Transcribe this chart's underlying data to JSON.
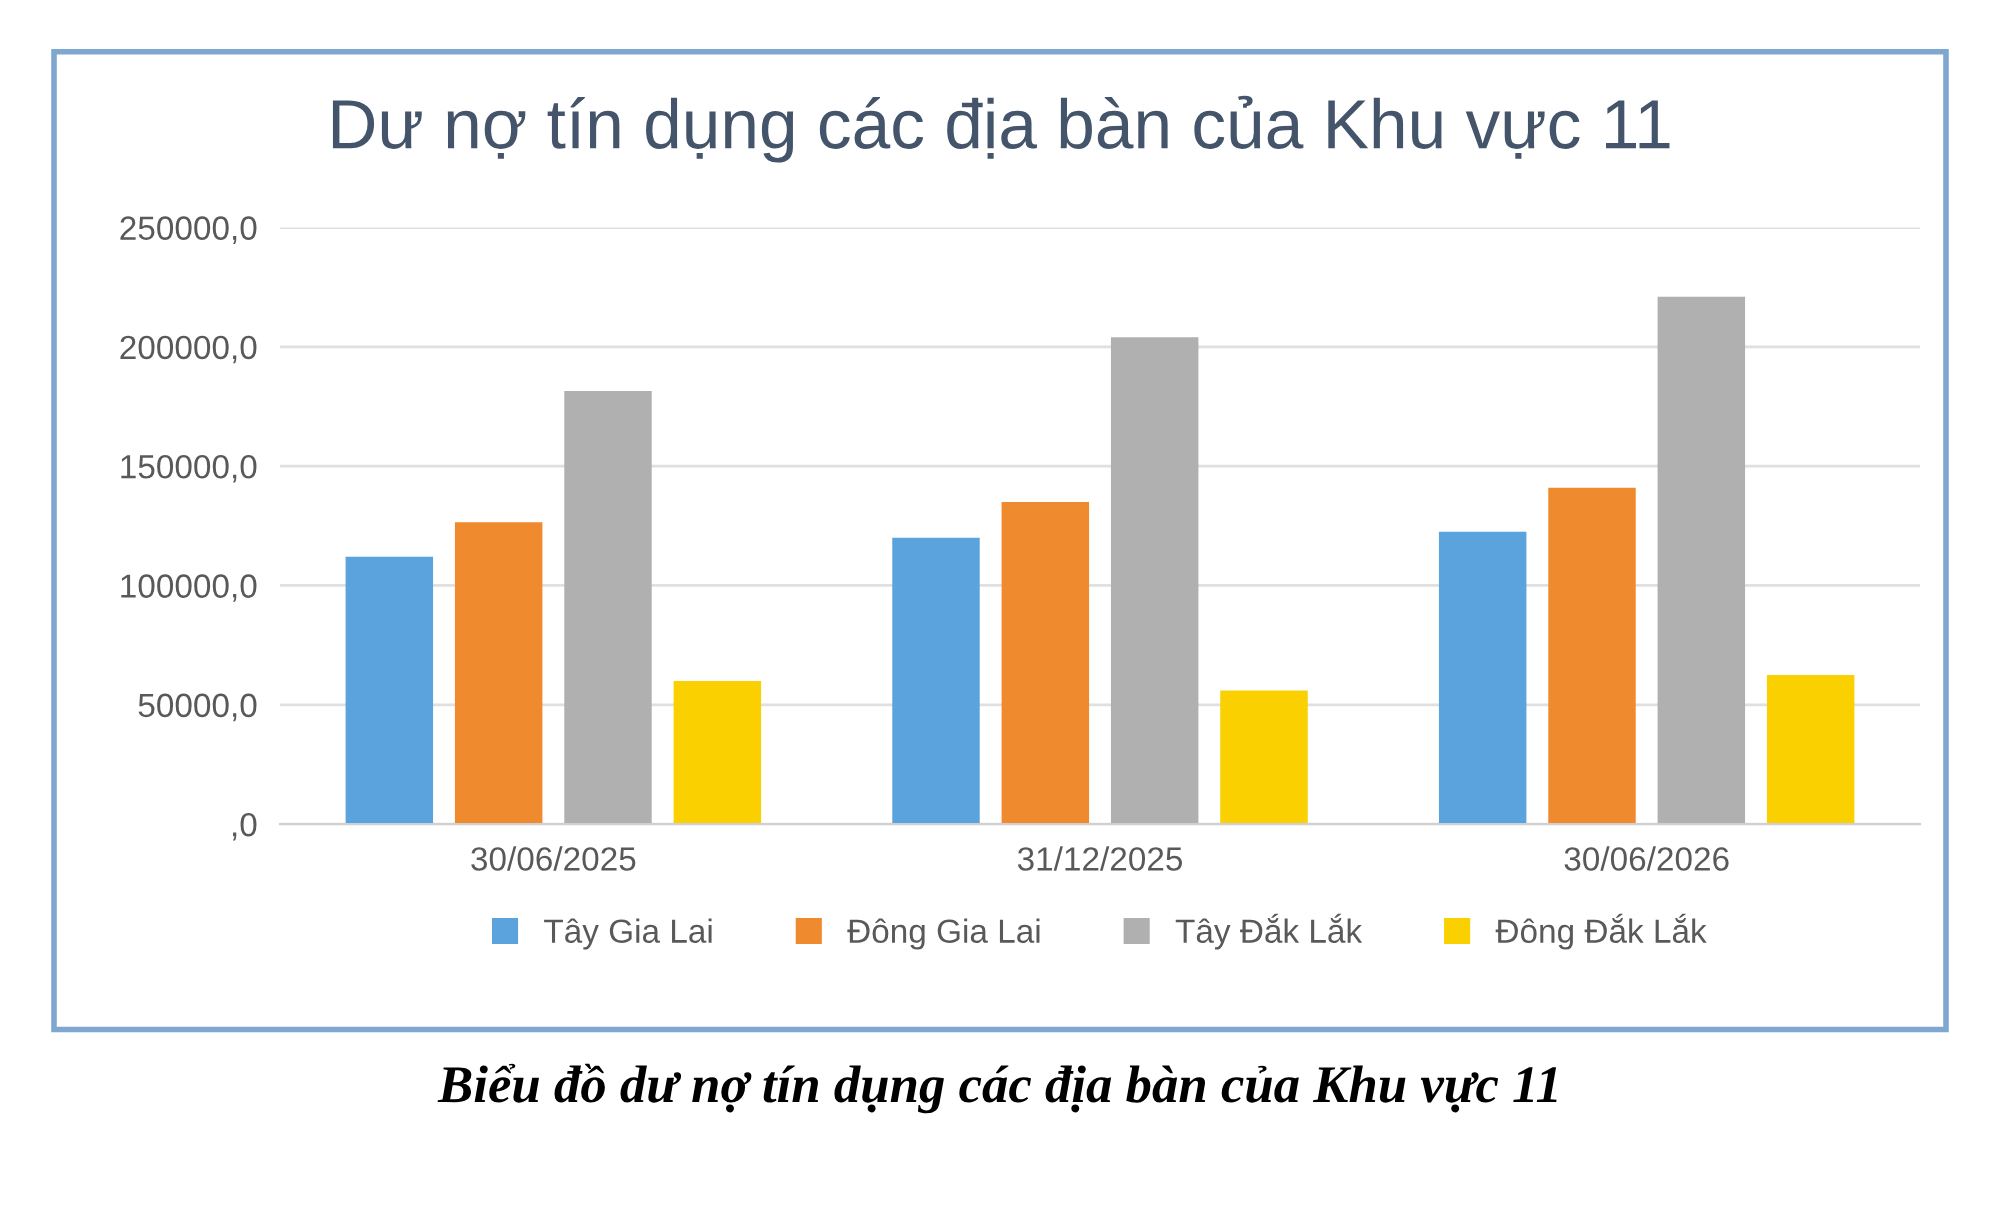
{
  "chart_data": {
    "type": "bar",
    "title": "Dư nợ tín dụng các địa bàn của Khu vực 11",
    "categories": [
      "30/06/2025",
      "31/12/2025",
      "30/06/2026"
    ],
    "series": [
      {
        "name": "Tây Gia Lai",
        "color": "#5ba3dc",
        "values": [
          112000,
          120000,
          122500
        ]
      },
      {
        "name": "Đông Gia Lai",
        "color": "#f08a2e",
        "values": [
          126500,
          135000,
          141000
        ]
      },
      {
        "name": "Tây Đắk Lắk",
        "color": "#b0b0b0",
        "values": [
          181500,
          204000,
          221000
        ]
      },
      {
        "name": "Đông Đắk Lắk",
        "color": "#fbd000",
        "values": [
          60000,
          56000,
          62500
        ]
      }
    ],
    "ylim": [
      0,
      250000
    ],
    "yticks": [
      {
        "value": 0,
        "label": ",0"
      },
      {
        "value": 50000,
        "label": "50000,0"
      },
      {
        "value": 100000,
        "label": "100000,0"
      },
      {
        "value": 150000,
        "label": "150000,0"
      },
      {
        "value": 200000,
        "label": "200000,0"
      },
      {
        "value": 250000,
        "label": "250000,0"
      }
    ],
    "grid": "y",
    "legend": "bottom",
    "annotations": [
      "Biểu đồ dư nợ tín dụng các địa bàn của Khu vực 11"
    ]
  }
}
